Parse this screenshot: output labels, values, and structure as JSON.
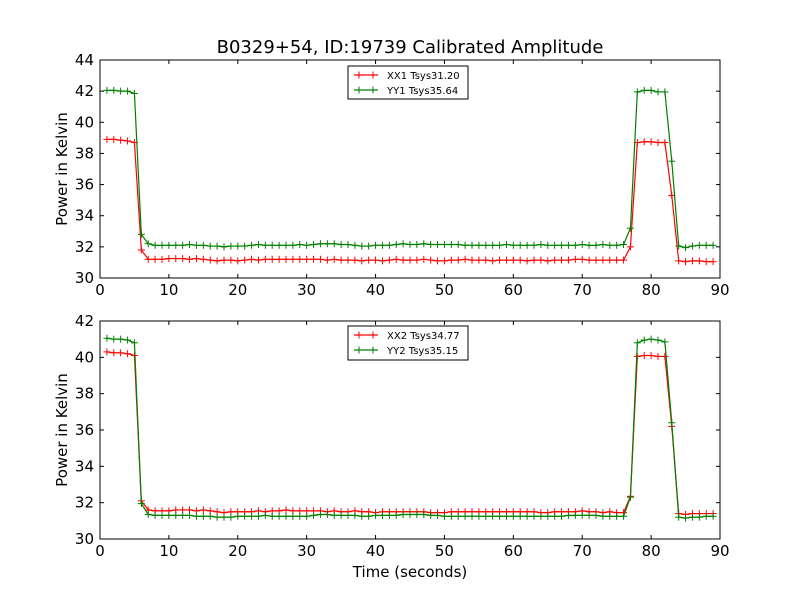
{
  "figure": {
    "title": "B0329+54, ID:19739 Calibrated Amplitude",
    "xlabel": "Time (seconds)"
  },
  "chart_data": [
    {
      "type": "line",
      "ylabel": "Power in Kelvin",
      "xlim": [
        0,
        90
      ],
      "ylim": [
        30,
        44
      ],
      "xticks": [
        0,
        10,
        20,
        30,
        40,
        50,
        60,
        70,
        80,
        90
      ],
      "yticks": [
        30,
        32,
        34,
        36,
        38,
        40,
        42,
        44
      ],
      "grid": false,
      "legend_position": "top-center",
      "series": [
        {
          "name": "XX1 Tsys31.20",
          "color": "#ff0000",
          "x": [
            1,
            2,
            3,
            4,
            5,
            6,
            7,
            8,
            9,
            10,
            11,
            12,
            13,
            14,
            15,
            16,
            17,
            18,
            19,
            20,
            21,
            22,
            23,
            24,
            25,
            26,
            27,
            28,
            29,
            30,
            31,
            32,
            33,
            34,
            35,
            36,
            37,
            38,
            39,
            40,
            41,
            42,
            43,
            44,
            45,
            46,
            47,
            48,
            49,
            50,
            51,
            52,
            53,
            54,
            55,
            56,
            57,
            58,
            59,
            60,
            61,
            62,
            63,
            64,
            65,
            66,
            67,
            68,
            69,
            70,
            71,
            72,
            73,
            74,
            75,
            76,
            77,
            78,
            79,
            80,
            81,
            82,
            83,
            84,
            85,
            86,
            87,
            88,
            89
          ],
          "y": [
            38.9,
            38.9,
            38.85,
            38.8,
            38.7,
            31.8,
            31.2,
            31.2,
            31.2,
            31.25,
            31.25,
            31.25,
            31.2,
            31.25,
            31.2,
            31.15,
            31.1,
            31.15,
            31.15,
            31.1,
            31.15,
            31.2,
            31.15,
            31.2,
            31.2,
            31.2,
            31.2,
            31.2,
            31.2,
            31.2,
            31.2,
            31.2,
            31.15,
            31.2,
            31.15,
            31.15,
            31.15,
            31.1,
            31.15,
            31.15,
            31.1,
            31.15,
            31.2,
            31.15,
            31.15,
            31.15,
            31.2,
            31.15,
            31.1,
            31.1,
            31.15,
            31.15,
            31.2,
            31.15,
            31.15,
            31.15,
            31.1,
            31.15,
            31.15,
            31.15,
            31.15,
            31.1,
            31.15,
            31.15,
            31.1,
            31.15,
            31.15,
            31.15,
            31.2,
            31.2,
            31.15,
            31.15,
            31.15,
            31.15,
            31.15,
            31.15,
            32.0,
            38.7,
            38.75,
            38.75,
            38.7,
            38.7,
            35.3,
            31.1,
            31.05,
            31.1,
            31.1,
            31.05,
            31.05
          ]
        },
        {
          "name": "YY1 Tsys35.64",
          "color": "#008000",
          "x": [
            1,
            2,
            3,
            4,
            5,
            6,
            7,
            8,
            9,
            10,
            11,
            12,
            13,
            14,
            15,
            16,
            17,
            18,
            19,
            20,
            21,
            22,
            23,
            24,
            25,
            26,
            27,
            28,
            29,
            30,
            31,
            32,
            33,
            34,
            35,
            36,
            37,
            38,
            39,
            40,
            41,
            42,
            43,
            44,
            45,
            46,
            47,
            48,
            49,
            50,
            51,
            52,
            53,
            54,
            55,
            56,
            57,
            58,
            59,
            60,
            61,
            62,
            63,
            64,
            65,
            66,
            67,
            68,
            69,
            70,
            71,
            72,
            73,
            74,
            75,
            76,
            77,
            78,
            79,
            80,
            81,
            82,
            83,
            84,
            85,
            86,
            87,
            88,
            89
          ],
          "y": [
            42.05,
            42.05,
            42.0,
            42.0,
            41.85,
            32.8,
            32.2,
            32.1,
            32.1,
            32.1,
            32.1,
            32.1,
            32.15,
            32.1,
            32.1,
            32.05,
            32.05,
            32.0,
            32.05,
            32.05,
            32.05,
            32.1,
            32.15,
            32.1,
            32.1,
            32.1,
            32.1,
            32.1,
            32.15,
            32.1,
            32.15,
            32.2,
            32.2,
            32.2,
            32.15,
            32.15,
            32.1,
            32.05,
            32.05,
            32.1,
            32.1,
            32.1,
            32.15,
            32.2,
            32.15,
            32.15,
            32.2,
            32.15,
            32.15,
            32.15,
            32.15,
            32.15,
            32.1,
            32.1,
            32.1,
            32.1,
            32.1,
            32.1,
            32.15,
            32.1,
            32.1,
            32.1,
            32.1,
            32.15,
            32.1,
            32.1,
            32.1,
            32.1,
            32.1,
            32.15,
            32.1,
            32.1,
            32.15,
            32.1,
            32.1,
            32.15,
            33.2,
            41.95,
            42.05,
            42.05,
            41.95,
            41.95,
            37.5,
            32.05,
            31.95,
            32.05,
            32.1,
            32.1,
            32.1
          ]
        }
      ]
    },
    {
      "type": "line",
      "ylabel": "Power in Kelvin",
      "xlabel": "Time (seconds)",
      "xlim": [
        0,
        90
      ],
      "ylim": [
        30,
        42
      ],
      "xticks": [
        0,
        10,
        20,
        30,
        40,
        50,
        60,
        70,
        80,
        90
      ],
      "yticks": [
        30,
        32,
        34,
        36,
        38,
        40,
        42
      ],
      "grid": false,
      "legend_position": "top-center",
      "series": [
        {
          "name": "XX2 Tsys34.77",
          "color": "#ff0000",
          "x": [
            1,
            2,
            3,
            4,
            5,
            6,
            7,
            8,
            9,
            10,
            11,
            12,
            13,
            14,
            15,
            16,
            17,
            18,
            19,
            20,
            21,
            22,
            23,
            24,
            25,
            26,
            27,
            28,
            29,
            30,
            31,
            32,
            33,
            34,
            35,
            36,
            37,
            38,
            39,
            40,
            41,
            42,
            43,
            44,
            45,
            46,
            47,
            48,
            49,
            50,
            51,
            52,
            53,
            54,
            55,
            56,
            57,
            58,
            59,
            60,
            61,
            62,
            63,
            64,
            65,
            66,
            67,
            68,
            69,
            70,
            71,
            72,
            73,
            74,
            75,
            76,
            77,
            78,
            79,
            80,
            81,
            82,
            83,
            84,
            85,
            86,
            87,
            88,
            89
          ],
          "y": [
            40.3,
            40.25,
            40.25,
            40.2,
            40.1,
            32.1,
            31.6,
            31.55,
            31.55,
            31.55,
            31.6,
            31.6,
            31.6,
            31.55,
            31.6,
            31.55,
            31.5,
            31.45,
            31.5,
            31.5,
            31.5,
            31.5,
            31.55,
            31.5,
            31.55,
            31.55,
            31.6,
            31.55,
            31.55,
            31.55,
            31.55,
            31.55,
            31.5,
            31.55,
            31.5,
            31.5,
            31.55,
            31.5,
            31.5,
            31.45,
            31.5,
            31.5,
            31.5,
            31.5,
            31.5,
            31.5,
            31.5,
            31.45,
            31.45,
            31.45,
            31.5,
            31.5,
            31.5,
            31.5,
            31.5,
            31.5,
            31.5,
            31.5,
            31.5,
            31.5,
            31.5,
            31.5,
            31.5,
            31.45,
            31.45,
            31.5,
            31.5,
            31.5,
            31.5,
            31.55,
            31.5,
            31.5,
            31.45,
            31.5,
            31.45,
            31.45,
            32.35,
            40.05,
            40.1,
            40.1,
            40.05,
            40.05,
            36.2,
            31.4,
            31.35,
            31.4,
            31.4,
            31.4,
            31.4
          ]
        },
        {
          "name": "YY2 Tsys35.15",
          "color": "#008000",
          "x": [
            1,
            2,
            3,
            4,
            5,
            6,
            7,
            8,
            9,
            10,
            11,
            12,
            13,
            14,
            15,
            16,
            17,
            18,
            19,
            20,
            21,
            22,
            23,
            24,
            25,
            26,
            27,
            28,
            29,
            30,
            31,
            32,
            33,
            34,
            35,
            36,
            37,
            38,
            39,
            40,
            41,
            42,
            43,
            44,
            45,
            46,
            47,
            48,
            49,
            50,
            51,
            52,
            53,
            54,
            55,
            56,
            57,
            58,
            59,
            60,
            61,
            62,
            63,
            64,
            65,
            66,
            67,
            68,
            69,
            70,
            71,
            72,
            73,
            74,
            75,
            76,
            77,
            78,
            79,
            80,
            81,
            82,
            83,
            84,
            85,
            86,
            87,
            88,
            89
          ],
          "y": [
            41.05,
            41.0,
            41.0,
            40.95,
            40.8,
            31.95,
            31.35,
            31.3,
            31.3,
            31.3,
            31.3,
            31.3,
            31.3,
            31.25,
            31.25,
            31.25,
            31.2,
            31.2,
            31.2,
            31.25,
            31.25,
            31.25,
            31.25,
            31.3,
            31.25,
            31.25,
            31.25,
            31.25,
            31.25,
            31.25,
            31.3,
            31.35,
            31.35,
            31.3,
            31.3,
            31.3,
            31.3,
            31.25,
            31.25,
            31.3,
            31.3,
            31.3,
            31.3,
            31.35,
            31.35,
            31.35,
            31.35,
            31.3,
            31.3,
            31.25,
            31.25,
            31.25,
            31.25,
            31.25,
            31.25,
            31.25,
            31.25,
            31.25,
            31.25,
            31.25,
            31.25,
            31.25,
            31.25,
            31.25,
            31.25,
            31.25,
            31.25,
            31.3,
            31.3,
            31.3,
            31.3,
            31.3,
            31.25,
            31.25,
            31.25,
            31.25,
            32.3,
            40.8,
            40.95,
            41.0,
            40.95,
            40.85,
            36.4,
            31.2,
            31.15,
            31.2,
            31.2,
            31.25,
            31.25
          ]
        }
      ]
    }
  ]
}
